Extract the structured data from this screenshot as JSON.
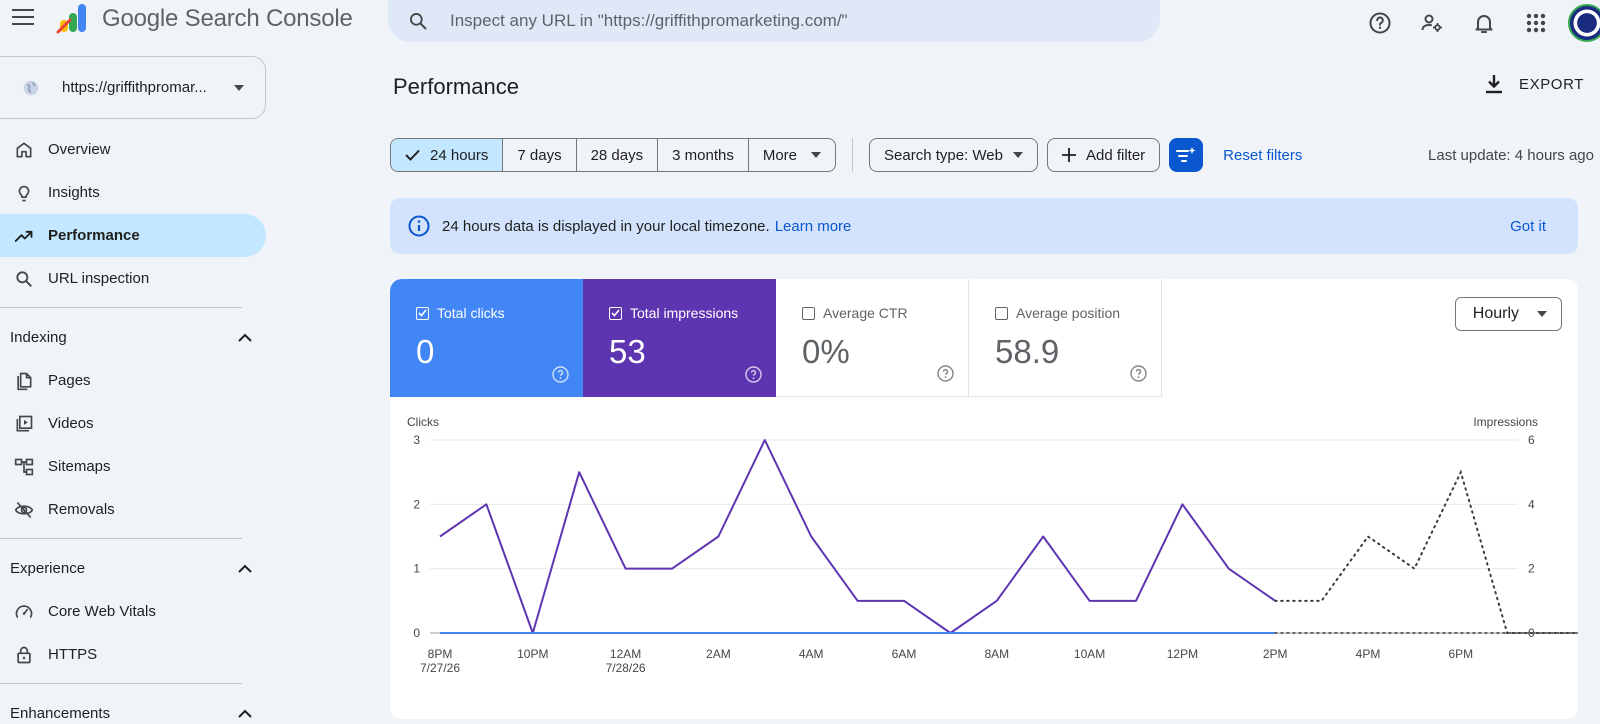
{
  "app": {
    "title": "Google Search Console"
  },
  "search": {
    "placeholder": "Inspect any URL in \"https://griffithpromarketing.com/\""
  },
  "property": {
    "label": "https://griffithpromar..."
  },
  "sidebar": {
    "items": [
      {
        "label": "Overview",
        "icon": "home-icon"
      },
      {
        "label": "Insights",
        "icon": "lightbulb-icon"
      },
      {
        "label": "Performance",
        "icon": "trending-up-icon",
        "active": true
      },
      {
        "label": "URL inspection",
        "icon": "search-icon"
      }
    ],
    "sections": [
      {
        "title": "Indexing",
        "items": [
          {
            "label": "Pages",
            "icon": "pages-icon"
          },
          {
            "label": "Videos",
            "icon": "video-icon"
          },
          {
            "label": "Sitemaps",
            "icon": "sitemap-icon"
          },
          {
            "label": "Removals",
            "icon": "eye-off-icon"
          }
        ]
      },
      {
        "title": "Experience",
        "items": [
          {
            "label": "Core Web Vitals",
            "icon": "gauge-icon"
          },
          {
            "label": "HTTPS",
            "icon": "lock-icon"
          }
        ]
      },
      {
        "title": "Enhancements",
        "items": []
      }
    ]
  },
  "page": {
    "title": "Performance",
    "export_label": "EXPORT"
  },
  "filters": {
    "ranges": [
      "24 hours",
      "7 days",
      "28 days",
      "3 months",
      "More"
    ],
    "selected": "24 hours",
    "search_type": "Search type: Web",
    "add_filter": "Add filter",
    "reset": "Reset filters",
    "last_update": "Last update: 4 hours ago"
  },
  "banner": {
    "message": "24 hours data is displayed in your local timezone.",
    "link": "Learn more",
    "dismiss": "Got it"
  },
  "metrics": [
    {
      "label": "Total clicks",
      "value": "0",
      "checked": true,
      "color": "#4285f4"
    },
    {
      "label": "Total impressions",
      "value": "53",
      "checked": true,
      "color": "#5e35b1"
    },
    {
      "label": "Average CTR",
      "value": "0%",
      "checked": false
    },
    {
      "label": "Average position",
      "value": "58.9",
      "checked": false
    }
  ],
  "granularity": "Hourly",
  "chart_data": {
    "type": "line",
    "left_axis_label": "Clicks",
    "right_axis_label": "Impressions",
    "left_ticks": [
      "3",
      "2",
      "1",
      "0"
    ],
    "right_ticks": [
      "6",
      "4",
      "2",
      "0"
    ],
    "left_ylim": [
      0,
      3
    ],
    "right_ylim": [
      0,
      6
    ],
    "x_tick_labels": [
      {
        "label": "8 PM",
        "sub": "7/27/26"
      },
      {
        "label": "10 PM",
        "sub": ""
      },
      {
        "label": "12 AM",
        "sub": "7/28/26"
      },
      {
        "label": "2 AM",
        "sub": ""
      },
      {
        "label": "4 AM",
        "sub": ""
      },
      {
        "label": "6 AM",
        "sub": ""
      },
      {
        "label": "8 AM",
        "sub": ""
      },
      {
        "label": "10 AM",
        "sub": ""
      },
      {
        "label": "12 PM",
        "sub": ""
      },
      {
        "label": "2 PM",
        "sub": ""
      },
      {
        "label": "4 PM",
        "sub": ""
      },
      {
        "label": "6 PM",
        "sub": ""
      }
    ],
    "series": [
      {
        "name": "Total impressions",
        "color": "#5e35b1",
        "axis": "right",
        "values": [
          3,
          4,
          0,
          5,
          2,
          2,
          3,
          6,
          3,
          1,
          1,
          0,
          1,
          3,
          1,
          1,
          4,
          2,
          1
        ],
        "dotted_values": [
          1,
          3,
          2,
          5,
          0,
          0,
          0,
          0,
          0
        ]
      },
      {
        "name": "Total clicks",
        "color": "#4285f4",
        "axis": "left",
        "values": [
          0,
          0,
          0,
          0,
          0,
          0,
          0,
          0,
          0,
          0,
          0,
          0,
          0,
          0,
          0,
          0,
          0,
          0,
          0
        ],
        "dotted_values": [
          0,
          0,
          0,
          0,
          0,
          0,
          0,
          0,
          0
        ]
      }
    ]
  }
}
